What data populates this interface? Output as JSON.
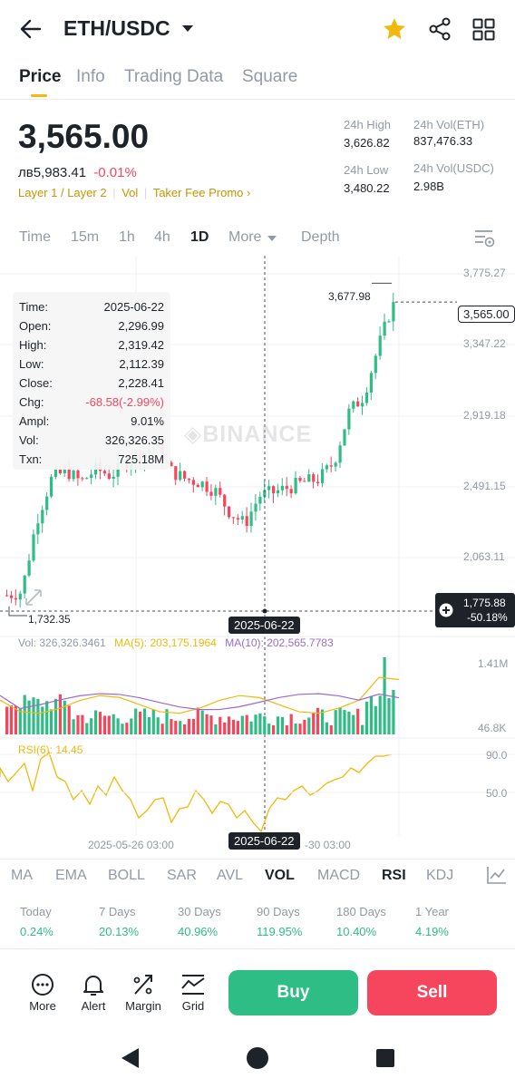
{
  "header": {
    "pair": "ETH/USDC"
  },
  "tabs": [
    "Price",
    "Info",
    "Trading Data",
    "Square"
  ],
  "price": {
    "last": "3,565.00",
    "local": "лв5,983.41",
    "change": "-0.01%",
    "tags": [
      "Layer 1 / Layer 2",
      "Vol",
      "Taker Fee Promo"
    ]
  },
  "stats": {
    "high_label": "24h High",
    "high": "3,626.82",
    "low_label": "24h Low",
    "low": "3,480.22",
    "vol_eth_label": "24h Vol(ETH)",
    "vol_eth": "837,476.33",
    "vol_usdc_label": "24h Vol(USDC)",
    "vol_usdc": "2.98B"
  },
  "intervals": [
    "Time",
    "15m",
    "1h",
    "4h",
    "1D",
    "More",
    "Depth"
  ],
  "tooltip": {
    "rows": [
      {
        "k": "Time:",
        "v": "2025-06-22"
      },
      {
        "k": "Open:",
        "v": "2,296.99"
      },
      {
        "k": "High:",
        "v": "2,319.42"
      },
      {
        "k": "Low:",
        "v": "2,112.39"
      },
      {
        "k": "Close:",
        "v": "2,228.41"
      },
      {
        "k": "Chg:",
        "v": "-68.58(-2.99%)"
      },
      {
        "k": "Ampl:",
        "v": "9.01%"
      },
      {
        "k": "Vol:",
        "v": "326,326.35"
      },
      {
        "k": "Txn:",
        "v": "725.18M"
      }
    ]
  },
  "chart": {
    "y_ticks": [
      "3,775.27",
      "3,347.22",
      "2,919.18",
      "2,491.15",
      "2,063.11"
    ],
    "max_label": "3,677.98",
    "min_label": "1,732.35",
    "current_label": "3,565.00",
    "cross_price": "1,775.88",
    "cross_pct": "-50.18%",
    "cross_date": "2025-06-22",
    "watermark": "BINANCE",
    "vol_info": "Vol: 326,326.3461",
    "ma5": "MA(5): 203,175.1964",
    "ma10": "MA(10): 202,565.7783",
    "vol_ticks": [
      "1.41M",
      "46.8K"
    ],
    "rsi_label": "RSI(6): 14.45",
    "rsi_ticks": [
      "90.0",
      "50.0"
    ],
    "x_date_left": "2025-05-26 03:00",
    "x_date_right": "-30 03:00"
  },
  "chart_data": {
    "type": "candlestick",
    "x_range": [
      "2025-04-?",
      "2025-07-?"
    ],
    "ylim": [
      1650,
      3800
    ],
    "current": 3565.0,
    "max_high": 3677.98,
    "min_low": 1732.35,
    "close_path_approx": [
      1800,
      1820,
      2250,
      2500,
      2550,
      2480,
      2560,
      2520,
      2600,
      2650,
      2700,
      2550,
      2500,
      2480,
      2430,
      2300,
      2228,
      2400,
      2420,
      2450,
      2480,
      2500,
      2600,
      2900,
      3000,
      3300,
      3565
    ],
    "volume_ticks": [
      46800,
      1410000
    ],
    "rsi6": 14.45,
    "rsi_ticks": [
      50.0,
      90.0
    ]
  },
  "indicators": [
    "MA",
    "EMA",
    "BOLL",
    "SAR",
    "AVL",
    "VOL",
    "MACD",
    "RSI",
    "KDJ"
  ],
  "performance": [
    {
      "label": "Today",
      "value": "0.24%"
    },
    {
      "label": "7 Days",
      "value": "20.13%"
    },
    {
      "label": "30 Days",
      "value": "40.96%"
    },
    {
      "label": "90 Days",
      "value": "119.95%"
    },
    {
      "label": "180 Days",
      "value": "10.40%"
    },
    {
      "label": "1 Year",
      "value": "4.19%"
    }
  ],
  "actions": [
    "More",
    "Alert",
    "Margin",
    "Grid"
  ],
  "buttons": {
    "buy": "Buy",
    "sell": "Sell"
  },
  "colors": {
    "up": "#2ebd85",
    "down": "#f6465d",
    "accent": "#f0b90b"
  }
}
